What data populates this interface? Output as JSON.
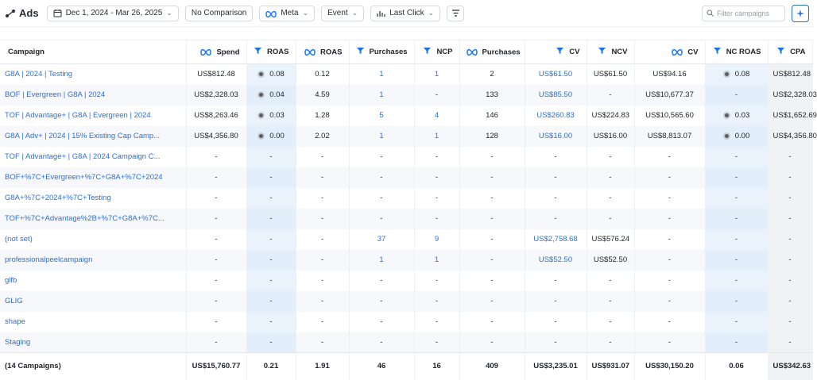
{
  "toolbar": {
    "title": "Ads",
    "date_range": "Dec 1, 2024 - Mar 26, 2025",
    "comparison": "No Comparison",
    "platform": "Meta",
    "attribution_event": "Event",
    "attribution_model": "Last Click",
    "search_placeholder": "Filter campaigns"
  },
  "columns": [
    {
      "label": "Campaign",
      "icon": ""
    },
    {
      "label": "Spend",
      "icon": "meta-icon"
    },
    {
      "label": "ROAS",
      "icon": "funnel-icon"
    },
    {
      "label": "ROAS",
      "icon": "meta-icon"
    },
    {
      "label": "Purchases",
      "icon": "funnel-icon"
    },
    {
      "label": "NCP",
      "icon": "funnel-icon"
    },
    {
      "label": "Purchases",
      "icon": "meta-icon"
    },
    {
      "label": "CV",
      "icon": "funnel-icon"
    },
    {
      "label": "NCV",
      "icon": "funnel-icon"
    },
    {
      "label": "CV",
      "icon": "meta-icon"
    },
    {
      "label": "NC ROAS",
      "icon": "funnel-icon"
    },
    {
      "label": "CPA",
      "icon": "funnel-icon"
    }
  ],
  "rows": [
    {
      "campaign": "G8A | 2024 | Testing",
      "spend": "US$812.48",
      "roas": "0.08",
      "roas_dot": true,
      "meta_roas": "0.12",
      "purchases": "1",
      "ncp": "1",
      "meta_purchases": "2",
      "cv": "US$61.50",
      "ncv": "US$61.50",
      "meta_cv": "US$94.16",
      "nc_roas": "0.08",
      "nc_dot": true,
      "cpa": "US$812.48"
    },
    {
      "campaign": "BOF | Evergreen | G8A | 2024",
      "spend": "US$2,328.03",
      "roas": "0.04",
      "roas_dot": true,
      "meta_roas": "4.59",
      "purchases": "1",
      "ncp": "-",
      "meta_purchases": "133",
      "cv": "US$85.50",
      "ncv": "-",
      "meta_cv": "US$10,677.37",
      "nc_roas": "-",
      "nc_dot": false,
      "cpa": "US$2,328.03"
    },
    {
      "campaign": "TOF | Advantage+ | G8A | Evergreen | 2024",
      "spend": "US$8,263.46",
      "roas": "0.03",
      "roas_dot": true,
      "meta_roas": "1.28",
      "purchases": "5",
      "ncp": "4",
      "meta_purchases": "146",
      "cv": "US$260.83",
      "ncv": "US$224.83",
      "meta_cv": "US$10,565.60",
      "nc_roas": "0.03",
      "nc_dot": true,
      "cpa": "US$1,652.69"
    },
    {
      "campaign": "G8A | Adv+ | 2024 | 15% Existing Cap Camp...",
      "spend": "US$4,356.80",
      "roas": "0.00",
      "roas_dot": true,
      "meta_roas": "2.02",
      "purchases": "1",
      "ncp": "1",
      "meta_purchases": "128",
      "cv": "US$16.00",
      "ncv": "US$16.00",
      "meta_cv": "US$8,813.07",
      "nc_roas": "0.00",
      "nc_dot": true,
      "cpa": "US$4,356.80"
    },
    {
      "campaign": "TOF | Advantage+ | G8A | 2024 Campaign C...",
      "spend": "-",
      "roas": "-",
      "roas_dot": false,
      "meta_roas": "-",
      "purchases": "-",
      "ncp": "-",
      "meta_purchases": "-",
      "cv": "-",
      "ncv": "-",
      "meta_cv": "-",
      "nc_roas": "-",
      "nc_dot": false,
      "cpa": "-"
    },
    {
      "campaign": "BOF+%7C+Evergreen+%7C+G8A+%7C+2024",
      "spend": "-",
      "roas": "-",
      "roas_dot": false,
      "meta_roas": "-",
      "purchases": "-",
      "ncp": "-",
      "meta_purchases": "-",
      "cv": "-",
      "ncv": "-",
      "meta_cv": "-",
      "nc_roas": "-",
      "nc_dot": false,
      "cpa": "-"
    },
    {
      "campaign": "G8A+%7C+2024+%7C+Testing",
      "spend": "-",
      "roas": "-",
      "roas_dot": false,
      "meta_roas": "-",
      "purchases": "-",
      "ncp": "-",
      "meta_purchases": "-",
      "cv": "-",
      "ncv": "-",
      "meta_cv": "-",
      "nc_roas": "-",
      "nc_dot": false,
      "cpa": "-"
    },
    {
      "campaign": "TOF+%7C+Advantage%2B+%7C+G8A+%7C...",
      "spend": "-",
      "roas": "-",
      "roas_dot": false,
      "meta_roas": "-",
      "purchases": "-",
      "ncp": "-",
      "meta_purchases": "-",
      "cv": "-",
      "ncv": "-",
      "meta_cv": "-",
      "nc_roas": "-",
      "nc_dot": false,
      "cpa": "-"
    },
    {
      "campaign": "(not set)",
      "spend": "-",
      "roas": "-",
      "roas_dot": false,
      "meta_roas": "-",
      "purchases": "37",
      "ncp": "9",
      "meta_purchases": "-",
      "cv": "US$2,758.68",
      "ncv": "US$576.24",
      "meta_cv": "-",
      "nc_roas": "-",
      "nc_dot": false,
      "cpa": "-"
    },
    {
      "campaign": "professionalpeelcampaign",
      "spend": "-",
      "roas": "-",
      "roas_dot": false,
      "meta_roas": "-",
      "purchases": "1",
      "ncp": "1",
      "meta_purchases": "-",
      "cv": "US$52.50",
      "ncv": "US$52.50",
      "meta_cv": "-",
      "nc_roas": "-",
      "nc_dot": false,
      "cpa": "-"
    },
    {
      "campaign": "glfb",
      "spend": "-",
      "roas": "-",
      "roas_dot": false,
      "meta_roas": "-",
      "purchases": "-",
      "ncp": "-",
      "meta_purchases": "-",
      "cv": "-",
      "ncv": "-",
      "meta_cv": "-",
      "nc_roas": "-",
      "nc_dot": false,
      "cpa": "-"
    },
    {
      "campaign": "GLIG",
      "spend": "-",
      "roas": "-",
      "roas_dot": false,
      "meta_roas": "-",
      "purchases": "-",
      "ncp": "-",
      "meta_purchases": "-",
      "cv": "-",
      "ncv": "-",
      "meta_cv": "-",
      "nc_roas": "-",
      "nc_dot": false,
      "cpa": "-"
    },
    {
      "campaign": "shape",
      "spend": "-",
      "roas": "-",
      "roas_dot": false,
      "meta_roas": "-",
      "purchases": "-",
      "ncp": "-",
      "meta_purchases": "-",
      "cv": "-",
      "ncv": "-",
      "meta_cv": "-",
      "nc_roas": "-",
      "nc_dot": false,
      "cpa": "-"
    },
    {
      "campaign": "Staging",
      "spend": "-",
      "roas": "-",
      "roas_dot": false,
      "meta_roas": "-",
      "purchases": "-",
      "ncp": "-",
      "meta_purchases": "-",
      "cv": "-",
      "ncv": "-",
      "meta_cv": "-",
      "nc_roas": "-",
      "nc_dot": false,
      "cpa": "-"
    }
  ],
  "totals": {
    "campaign": "(14 Campaigns)",
    "spend": "US$15,760.77",
    "roas": "0.21",
    "meta_roas": "1.91",
    "purchases": "46",
    "ncp": "16",
    "meta_purchases": "409",
    "cv": "US$3,235.01",
    "ncv": "US$931.07",
    "meta_cv": "US$30,150.20",
    "nc_roas": "0.06",
    "cpa": "US$342.63"
  },
  "colors": {
    "link": "#2d6fd6",
    "highlight": "#eaf2fc"
  }
}
